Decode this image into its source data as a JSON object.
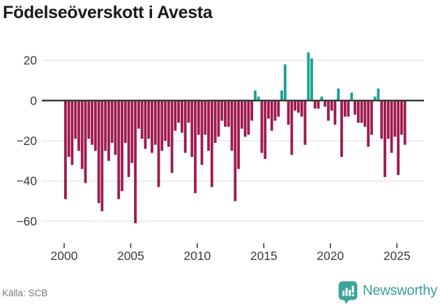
{
  "chart_data": {
    "type": "bar",
    "title": "Födelseöverskott i Avesta",
    "xlabel": "",
    "ylabel": "",
    "x_start": 2000,
    "x_step_years": 0.25,
    "frequency": "quarterly",
    "first_period": "2000-Q1",
    "last_period": "2025-Q3",
    "ylim": [
      -65,
      27
    ],
    "grid": "horizontal",
    "legend": "none",
    "y_ticks": [
      {
        "v": 20,
        "label": "20"
      },
      {
        "v": 0,
        "label": "0"
      },
      {
        "v": -20,
        "label": "−20"
      },
      {
        "v": -40,
        "label": "−40"
      },
      {
        "v": -60,
        "label": "−60"
      }
    ],
    "x_ticks": [
      {
        "v": 2000,
        "label": "2000"
      },
      {
        "v": 2005,
        "label": "2005"
      },
      {
        "v": 2010,
        "label": "2010"
      },
      {
        "v": 2015,
        "label": "2015"
      },
      {
        "v": 2020,
        "label": "2020"
      },
      {
        "v": 2025,
        "label": "2025"
      }
    ],
    "values": [
      -49,
      -28,
      -32,
      -19,
      -25,
      -34,
      -41,
      -19,
      -22,
      -25,
      -51,
      -55,
      -25,
      -30,
      -21,
      -27,
      -49,
      -45,
      -21,
      -38,
      -31,
      -61,
      -14,
      -19,
      -24,
      -19,
      -26,
      -22,
      -43,
      -25,
      -20,
      -23,
      -36,
      -15,
      -11,
      -16,
      -26,
      -11,
      -28,
      -46,
      -17,
      -32,
      -17,
      -25,
      -43,
      -21,
      -18,
      -10,
      -13,
      -13,
      -25,
      -50,
      -34,
      -14,
      -18,
      -17,
      -10,
      5,
      2,
      -26,
      -29,
      -9,
      -15,
      -10,
      -8,
      5,
      18,
      -12,
      -27,
      -5,
      -6,
      -8,
      -22,
      24,
      21,
      -4,
      -4,
      2,
      -3,
      -10,
      -5,
      -12,
      6,
      -28,
      -8,
      -8,
      4,
      -7,
      -11,
      -11,
      -13,
      -23,
      -17,
      2,
      6,
      -19,
      -38,
      -19,
      -26,
      -18,
      -37,
      -17,
      -22
    ],
    "colors": {
      "negative": "#9e1b4e",
      "positive": "#17a296",
      "zero_line": "#3b3b3b",
      "gridline": "#e7e7e7",
      "axis_text": "#3d3d3d"
    }
  },
  "footer": {
    "source": "Källa: SCB",
    "brand": "Newsworthy",
    "brand_color": "#38a096"
  }
}
